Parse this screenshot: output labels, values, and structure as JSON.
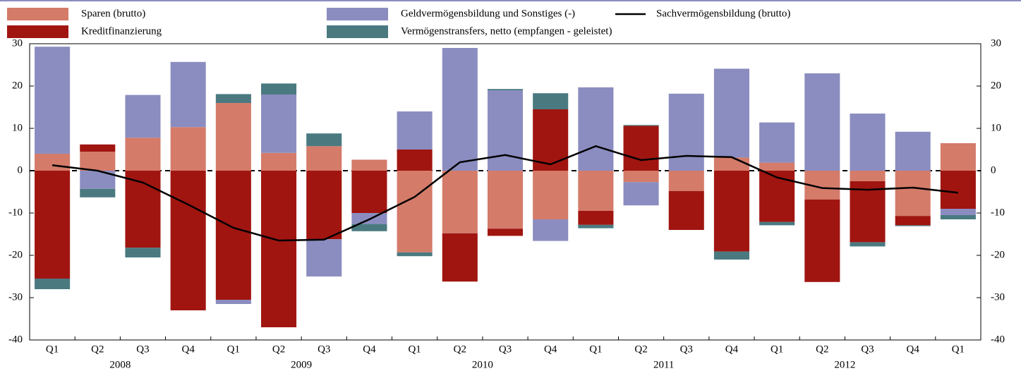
{
  "chart_data": {
    "type": "bar",
    "stacked": true,
    "categories": [
      "Q1",
      "Q2",
      "Q3",
      "Q4",
      "Q1",
      "Q2",
      "Q3",
      "Q4",
      "Q1",
      "Q2",
      "Q3",
      "Q4",
      "Q1",
      "Q2",
      "Q3",
      "Q4",
      "Q1",
      "Q2",
      "Q3",
      "Q4",
      "Q1"
    ],
    "x_groups": [
      "2008",
      "2009",
      "2010",
      "2011",
      "2012"
    ],
    "series": [
      {
        "name": "Sparen (brutto)",
        "color": "#d47b6a",
        "values": [
          4,
          4.5,
          7.8,
          10.3,
          16,
          4.2,
          5.8,
          2.6,
          -19.3,
          -14.8,
          -13.7,
          -11.5,
          -9.5,
          -2.7,
          -4.8,
          3.1,
          1.9,
          -6.8,
          -2.5,
          -10.7,
          6.5
        ]
      },
      {
        "name": "Kreditfinanzierung",
        "color": "#a01510",
        "values": [
          -25.5,
          1.7,
          -18.2,
          -33,
          -30.5,
          -37,
          -16.2,
          -10,
          5,
          -11.4,
          -1.7,
          14.5,
          -3.3,
          10.6,
          -9.2,
          -19.1,
          -12.1,
          -19.5,
          -14.4,
          -2.2,
          -9
        ]
      },
      {
        "name": "Geldvermögensbildung und Sonstiges (-)",
        "color": "#8b8dc0",
        "values": [
          25.3,
          -4.3,
          10.1,
          15.4,
          -1,
          13.8,
          -8.8,
          -2.6,
          9,
          29,
          19,
          -5.1,
          19.7,
          -5.5,
          18.2,
          21,
          9.5,
          23,
          13.5,
          9.2,
          -1.5
        ]
      },
      {
        "name": "Vermögenstransfers, netto (empfangen - geleistet)",
        "color": "#4a7a80",
        "values": [
          -2.5,
          -2,
          -2.3,
          0,
          2.1,
          2.6,
          3,
          -1.7,
          -0.9,
          0,
          0.3,
          3.8,
          -0.8,
          0.2,
          0,
          -1.9,
          -0.8,
          0,
          -1,
          -0.2,
          -1
        ]
      },
      {
        "name": "Sachvermögensbildung (brutto)",
        "color": "#000000",
        "type": "line",
        "values": [
          1.3,
          0,
          -2.8,
          -8,
          -13.5,
          -16.5,
          -16.3,
          -11.5,
          -6.2,
          2,
          3.7,
          1.5,
          5.8,
          2.5,
          3.5,
          3.2,
          -1.6,
          -4.1,
          -4.5,
          -4,
          -5.2
        ]
      }
    ],
    "ylim": [
      -40,
      30
    ],
    "yticks": [
      -40,
      -30,
      -20,
      -10,
      0,
      10,
      20,
      30
    ],
    "y2lim": [
      -40,
      30
    ],
    "y2ticks": [
      -40,
      -30,
      -20,
      -10,
      0,
      10,
      20,
      30
    ]
  }
}
